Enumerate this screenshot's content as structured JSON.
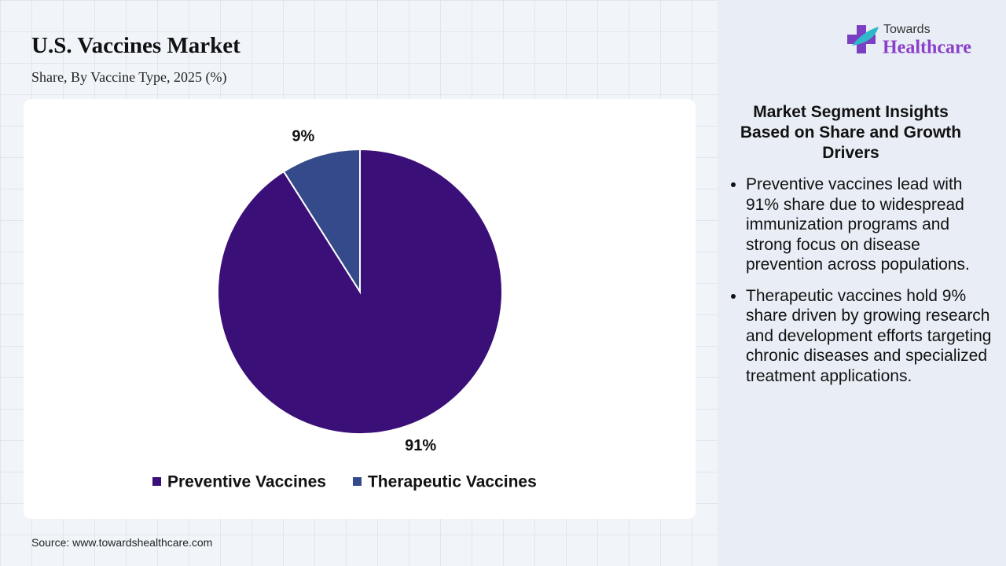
{
  "chart_data": {
    "type": "pie",
    "title": "U.S. Vaccines Market",
    "subtitle": "Share, By Vaccine Type, 2025 (%)",
    "categories": [
      "Preventive Vaccines",
      "Therapeutic Vaccines"
    ],
    "values": [
      91,
      9
    ],
    "value_labels": [
      "91%",
      "9%"
    ],
    "colors": [
      "#3b0f78",
      "#354a8a"
    ]
  },
  "source": "Source: www.towardshealthcare.com",
  "logo": {
    "top": "Towards",
    "bottom": "Healthcare"
  },
  "insights": {
    "heading": "Market Segment Insights Based on Share and Growth Drivers",
    "bullets": [
      "Preventive vaccines lead with 91% share due to widespread immunization programs and strong focus on disease prevention across populations.",
      "Therapeutic vaccines hold 9% share driven by growing research and development efforts targeting chronic diseases and specialized treatment applications."
    ]
  }
}
